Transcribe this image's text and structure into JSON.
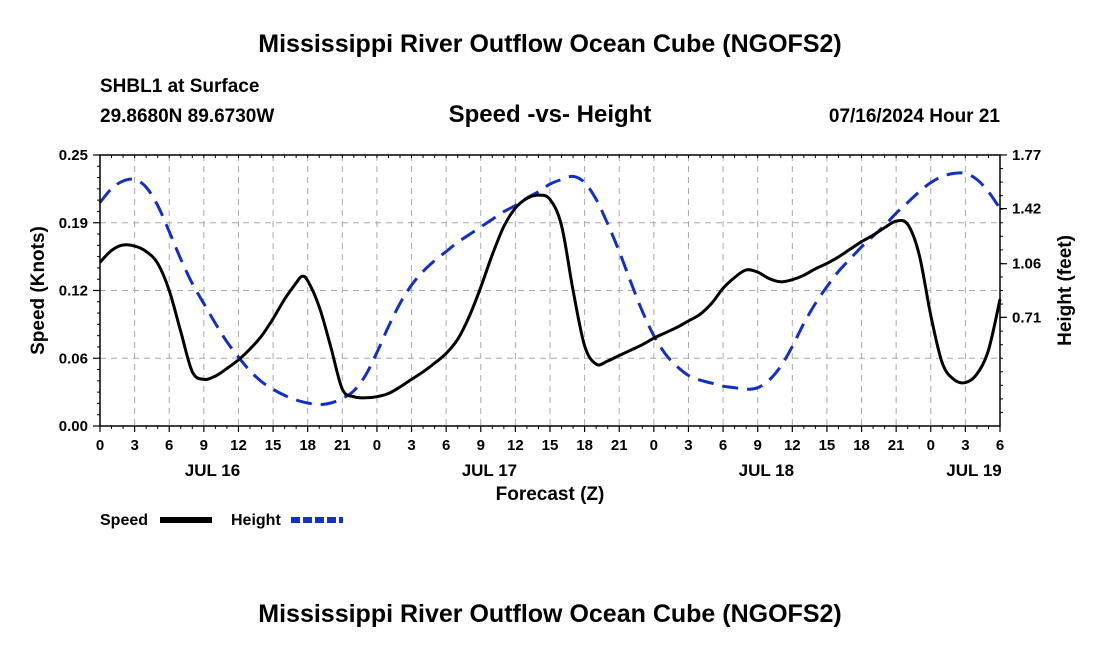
{
  "page": {
    "title": "Mississippi River Outflow Ocean Cube (NGOFS2)",
    "station": "SHBL1 at Surface",
    "coords": "29.8680N  89.6730W",
    "datetime": "07/16/2024 Hour 21",
    "footer_title": "Mississippi River Outflow Ocean Cube (NGOFS2)"
  },
  "chart_data": {
    "type": "line",
    "title": "Speed -vs- Height",
    "xlabel": "Forecast (Z)",
    "ylabel": "Speed (Knots)",
    "y2label": "Height (feet)",
    "xlim": [
      0,
      78
    ],
    "ylim": [
      0,
      0.25
    ],
    "y2lim": [
      0,
      1.77
    ],
    "x_ticks": [
      0,
      3,
      6,
      9,
      12,
      15,
      18,
      21,
      24,
      27,
      30,
      33,
      36,
      39,
      42,
      45,
      48,
      51,
      54,
      57,
      60,
      63,
      66,
      69,
      72,
      75,
      78
    ],
    "x_tick_labels": [
      "0",
      "3",
      "6",
      "9",
      "12",
      "15",
      "18",
      "21",
      "0",
      "3",
      "6",
      "9",
      "12",
      "15",
      "18",
      "21",
      "0",
      "3",
      "6",
      "9",
      "12",
      "15",
      "18",
      "21",
      "0",
      "3",
      "6"
    ],
    "date_labels": [
      {
        "x": 9.75,
        "label": "JUL 16"
      },
      {
        "x": 33.75,
        "label": "JUL 17"
      },
      {
        "x": 57.75,
        "label": "JUL 18"
      },
      {
        "x": 75.75,
        "label": "JUL 19"
      }
    ],
    "y_ticks": [
      0,
      0.0625,
      0.125,
      0.1875,
      0.25
    ],
    "y_tick_labels": [
      "0.00",
      "0.06",
      "0.12",
      "0.19",
      "0.25"
    ],
    "y2_ticks": [
      0.71,
      1.06,
      1.42,
      1.77
    ],
    "y2_tick_labels": [
      "0.71",
      "1.06",
      "1.42",
      "1.77"
    ],
    "series": [
      {
        "name": "Speed",
        "axis": "left",
        "color": "#000000",
        "dash": "solid",
        "x": [
          0,
          1,
          2,
          3,
          4,
          5,
          6,
          7,
          8,
          9,
          10,
          11,
          12,
          13,
          14,
          15,
          16,
          17,
          17.5,
          18,
          19,
          20,
          21,
          22,
          23,
          24,
          25,
          26,
          27,
          28,
          29,
          30,
          31,
          32,
          33,
          34,
          35,
          36,
          37,
          38,
          39,
          40,
          41,
          42,
          43,
          44,
          45,
          46,
          47,
          48,
          49,
          50,
          51,
          52,
          53,
          54,
          55,
          56,
          57,
          58,
          59,
          60,
          61,
          62,
          63,
          64,
          65,
          66,
          67,
          68,
          69,
          70,
          71,
          72,
          73,
          74,
          75,
          76,
          77,
          78
        ],
        "values": [
          0.151,
          0.162,
          0.167,
          0.166,
          0.161,
          0.15,
          0.125,
          0.087,
          0.05,
          0.043,
          0.046,
          0.053,
          0.061,
          0.071,
          0.083,
          0.099,
          0.117,
          0.132,
          0.138,
          0.134,
          0.11,
          0.073,
          0.034,
          0.027,
          0.026,
          0.027,
          0.03,
          0.036,
          0.043,
          0.05,
          0.058,
          0.067,
          0.08,
          0.101,
          0.128,
          0.158,
          0.184,
          0.201,
          0.21,
          0.213,
          0.209,
          0.185,
          0.125,
          0.074,
          0.057,
          0.06,
          0.065,
          0.07,
          0.075,
          0.081,
          0.086,
          0.091,
          0.097,
          0.103,
          0.113,
          0.127,
          0.137,
          0.144,
          0.142,
          0.136,
          0.133,
          0.135,
          0.139,
          0.145,
          0.15,
          0.156,
          0.163,
          0.17,
          0.176,
          0.183,
          0.189,
          0.186,
          0.158,
          0.102,
          0.058,
          0.043,
          0.04,
          0.048,
          0.07,
          0.117
        ]
      },
      {
        "name": "Height",
        "axis": "right",
        "color": "#1030c8",
        "dash": "dashed",
        "x": [
          0,
          1,
          2,
          3,
          4,
          5,
          6,
          7,
          8,
          9,
          10,
          11,
          12,
          13,
          14,
          15,
          16,
          17,
          18,
          19,
          20,
          21,
          22,
          23,
          24,
          25,
          26,
          27,
          28,
          29,
          30,
          31,
          32,
          33,
          34,
          35,
          36,
          37,
          38,
          39,
          40,
          41,
          42,
          43,
          44,
          45,
          46,
          47,
          48,
          49,
          50,
          51,
          52,
          53,
          54,
          55,
          56,
          57,
          58,
          59,
          60,
          61,
          62,
          63,
          64,
          65,
          66,
          67,
          68,
          69,
          70,
          71,
          72,
          73,
          74,
          75,
          76,
          77,
          78
        ],
        "values": [
          1.46,
          1.55,
          1.6,
          1.61,
          1.56,
          1.44,
          1.27,
          1.09,
          0.93,
          0.8,
          0.67,
          0.55,
          0.45,
          0.36,
          0.29,
          0.24,
          0.2,
          0.17,
          0.15,
          0.14,
          0.15,
          0.18,
          0.23,
          0.33,
          0.48,
          0.65,
          0.8,
          0.92,
          1.01,
          1.08,
          1.14,
          1.2,
          1.25,
          1.3,
          1.35,
          1.4,
          1.44,
          1.49,
          1.53,
          1.58,
          1.61,
          1.63,
          1.59,
          1.48,
          1.32,
          1.14,
          0.94,
          0.75,
          0.59,
          0.47,
          0.39,
          0.33,
          0.3,
          0.28,
          0.26,
          0.25,
          0.24,
          0.25,
          0.3,
          0.39,
          0.52,
          0.67,
          0.8,
          0.91,
          1.01,
          1.09,
          1.17,
          1.24,
          1.31,
          1.39,
          1.46,
          1.53,
          1.59,
          1.63,
          1.65,
          1.65,
          1.61,
          1.53,
          1.42
        ]
      }
    ],
    "legend": [
      {
        "label": "Speed",
        "color": "#000000",
        "dash": "solid"
      },
      {
        "label": "Height",
        "color": "#1030c8",
        "dash": "dashed"
      }
    ],
    "grid": true
  }
}
